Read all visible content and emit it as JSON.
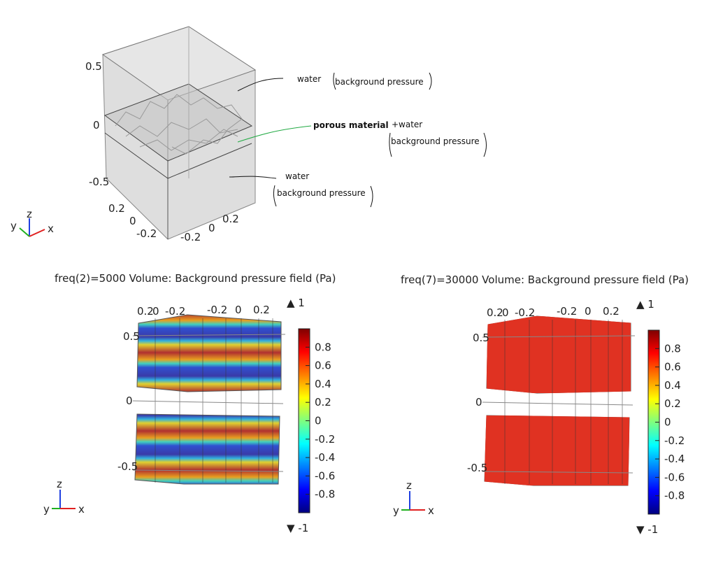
{
  "geometry": {
    "z_ticks": [
      "0.5",
      "0",
      "-0.5"
    ],
    "y_ticks": [
      "0.2",
      "0",
      "-0.2"
    ],
    "x_ticks": [
      "0.2",
      "0",
      "-0.2"
    ],
    "labels": {
      "top_domain": "water",
      "top_condition": "background pressure",
      "middle_domain": "porous material",
      "middle_extra": "+water",
      "middle_condition": "background pressure",
      "bottom_domain": "water",
      "bottom_condition": "background pressure"
    },
    "triad": {
      "x": "x",
      "y": "y",
      "z": "z"
    }
  },
  "plots": [
    {
      "title": "freq(2)=5000   Volume: Background pressure field (Pa)",
      "top_ticks": [
        "0.2",
        "0",
        "-0.2",
        "-0.2",
        "0",
        "0.2"
      ],
      "z_ticks": [
        "0.5",
        "0",
        "-0.5"
      ],
      "colorbar": {
        "max": "▲ 1",
        "min": "▼ -1",
        "ticks": [
          "0.8",
          "0.6",
          "0.4",
          "0.2",
          "0",
          "-0.2",
          "-0.4",
          "-0.6",
          "-0.8"
        ],
        "colormap": "rainbow"
      },
      "triad": {
        "x": "x",
        "y": "y",
        "z": "z"
      }
    },
    {
      "title": "freq(7)=30000   Volume: Background pressure field (Pa)",
      "top_ticks": [
        "0.2",
        "0",
        "-0.2",
        "-0.2",
        "0",
        "0.2"
      ],
      "z_ticks": [
        "0.5",
        "0",
        "-0.5"
      ],
      "colorbar": {
        "max": "▲ 1",
        "min": "▼ -1",
        "ticks": [
          "0.8",
          "0.6",
          "0.4",
          "0.2",
          "0",
          "-0.2",
          "-0.4",
          "-0.6",
          "-0.8"
        ],
        "colormap": "rainbow"
      },
      "triad": {
        "x": "x",
        "y": "y",
        "z": "z"
      }
    }
  ],
  "colors": {
    "x_axis": "#e02020",
    "y_axis": "#20b020",
    "z_axis": "#2040e0",
    "leader_green": "#22aa44"
  }
}
